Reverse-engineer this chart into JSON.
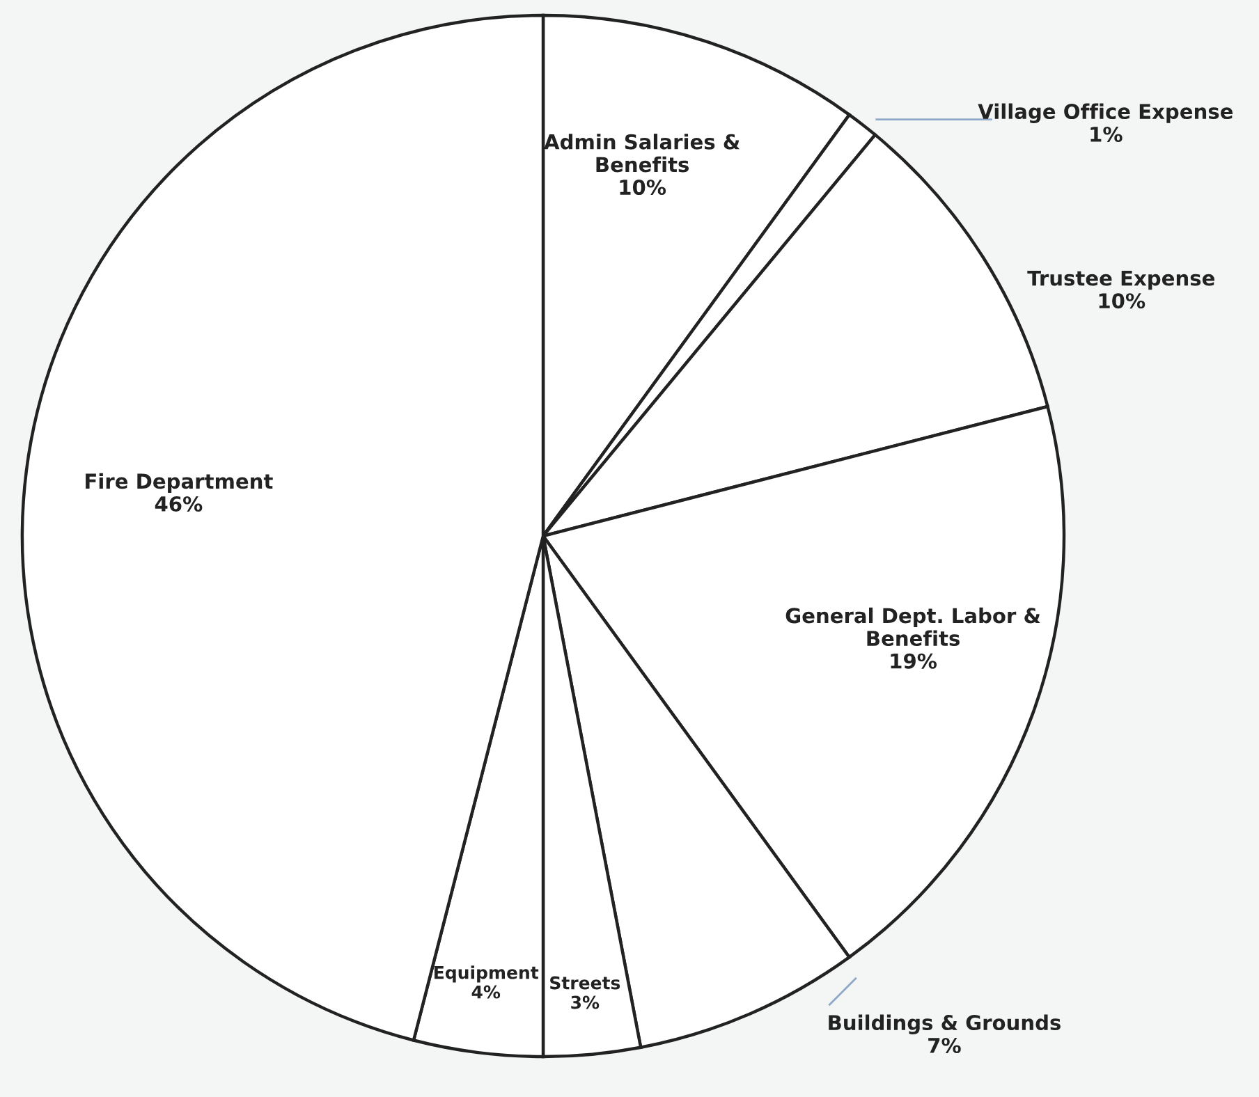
{
  "chart_data": {
    "type": "pie",
    "categories": [
      "Admin Salaries &\nBenefits",
      "Village Office Expense",
      "Trustee Expense",
      "General Dept. Labor &\nBenefits",
      "Buildings & Grounds",
      "Streets",
      "Equipment",
      "Fire Department"
    ],
    "values": [
      10,
      1,
      10,
      19,
      7,
      3,
      4,
      46
    ],
    "value_labels": [
      "10%",
      "1%",
      "10%",
      "19%",
      "7%",
      "3%",
      "4%",
      "46%"
    ],
    "colors": [
      "#ffffff",
      "#ffffff",
      "#ffffff",
      "#ffffff",
      "#ffffff",
      "#ffffff",
      "#ffffff",
      "#ffffff"
    ],
    "legend": false
  }
}
